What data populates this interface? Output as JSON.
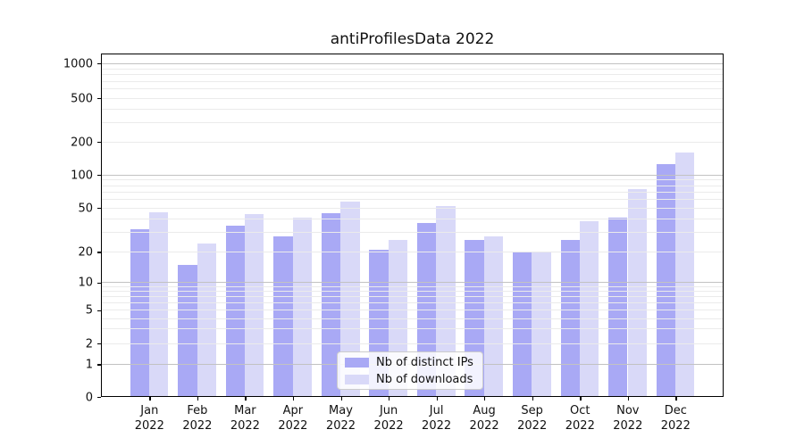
{
  "chart_data": {
    "type": "bar",
    "title": "antiProfilesData 2022",
    "categories": [
      "Jan 2022",
      "Feb 2022",
      "Mar 2022",
      "Apr 2022",
      "May 2022",
      "Jun 2022",
      "Jul 2022",
      "Aug 2022",
      "Sep 2022",
      "Oct 2022",
      "Nov 2022",
      "Dec 2022"
    ],
    "series": [
      {
        "name": "Nb of distinct IPs",
        "color": "#a9a9f5",
        "values": [
          32,
          15,
          35,
          28,
          45,
          21,
          37,
          26,
          20,
          26,
          41,
          125
        ]
      },
      {
        "name": "Nb of downloads",
        "color": "#d9d9f8",
        "values": [
          46,
          24,
          44,
          41,
          57,
          26,
          52,
          28,
          20,
          38,
          75,
          160
        ]
      }
    ],
    "yscale": "symlog",
    "yticks": [
      0,
      1,
      2,
      5,
      10,
      20,
      50,
      100,
      200,
      500,
      1000
    ],
    "ylim": [
      0,
      1200
    ],
    "xlabel": "",
    "ylabel": "",
    "grid": "horizontal major+minor, drawn above bars",
    "legend_position": "lower center",
    "colors": {
      "bar_dark": "#a9a9f5",
      "bar_light": "#d9d9f8",
      "grid_major": "#c2c2c2",
      "grid_minor": "#ebebeb",
      "spine": "#000000",
      "background": "#ffffff"
    }
  }
}
